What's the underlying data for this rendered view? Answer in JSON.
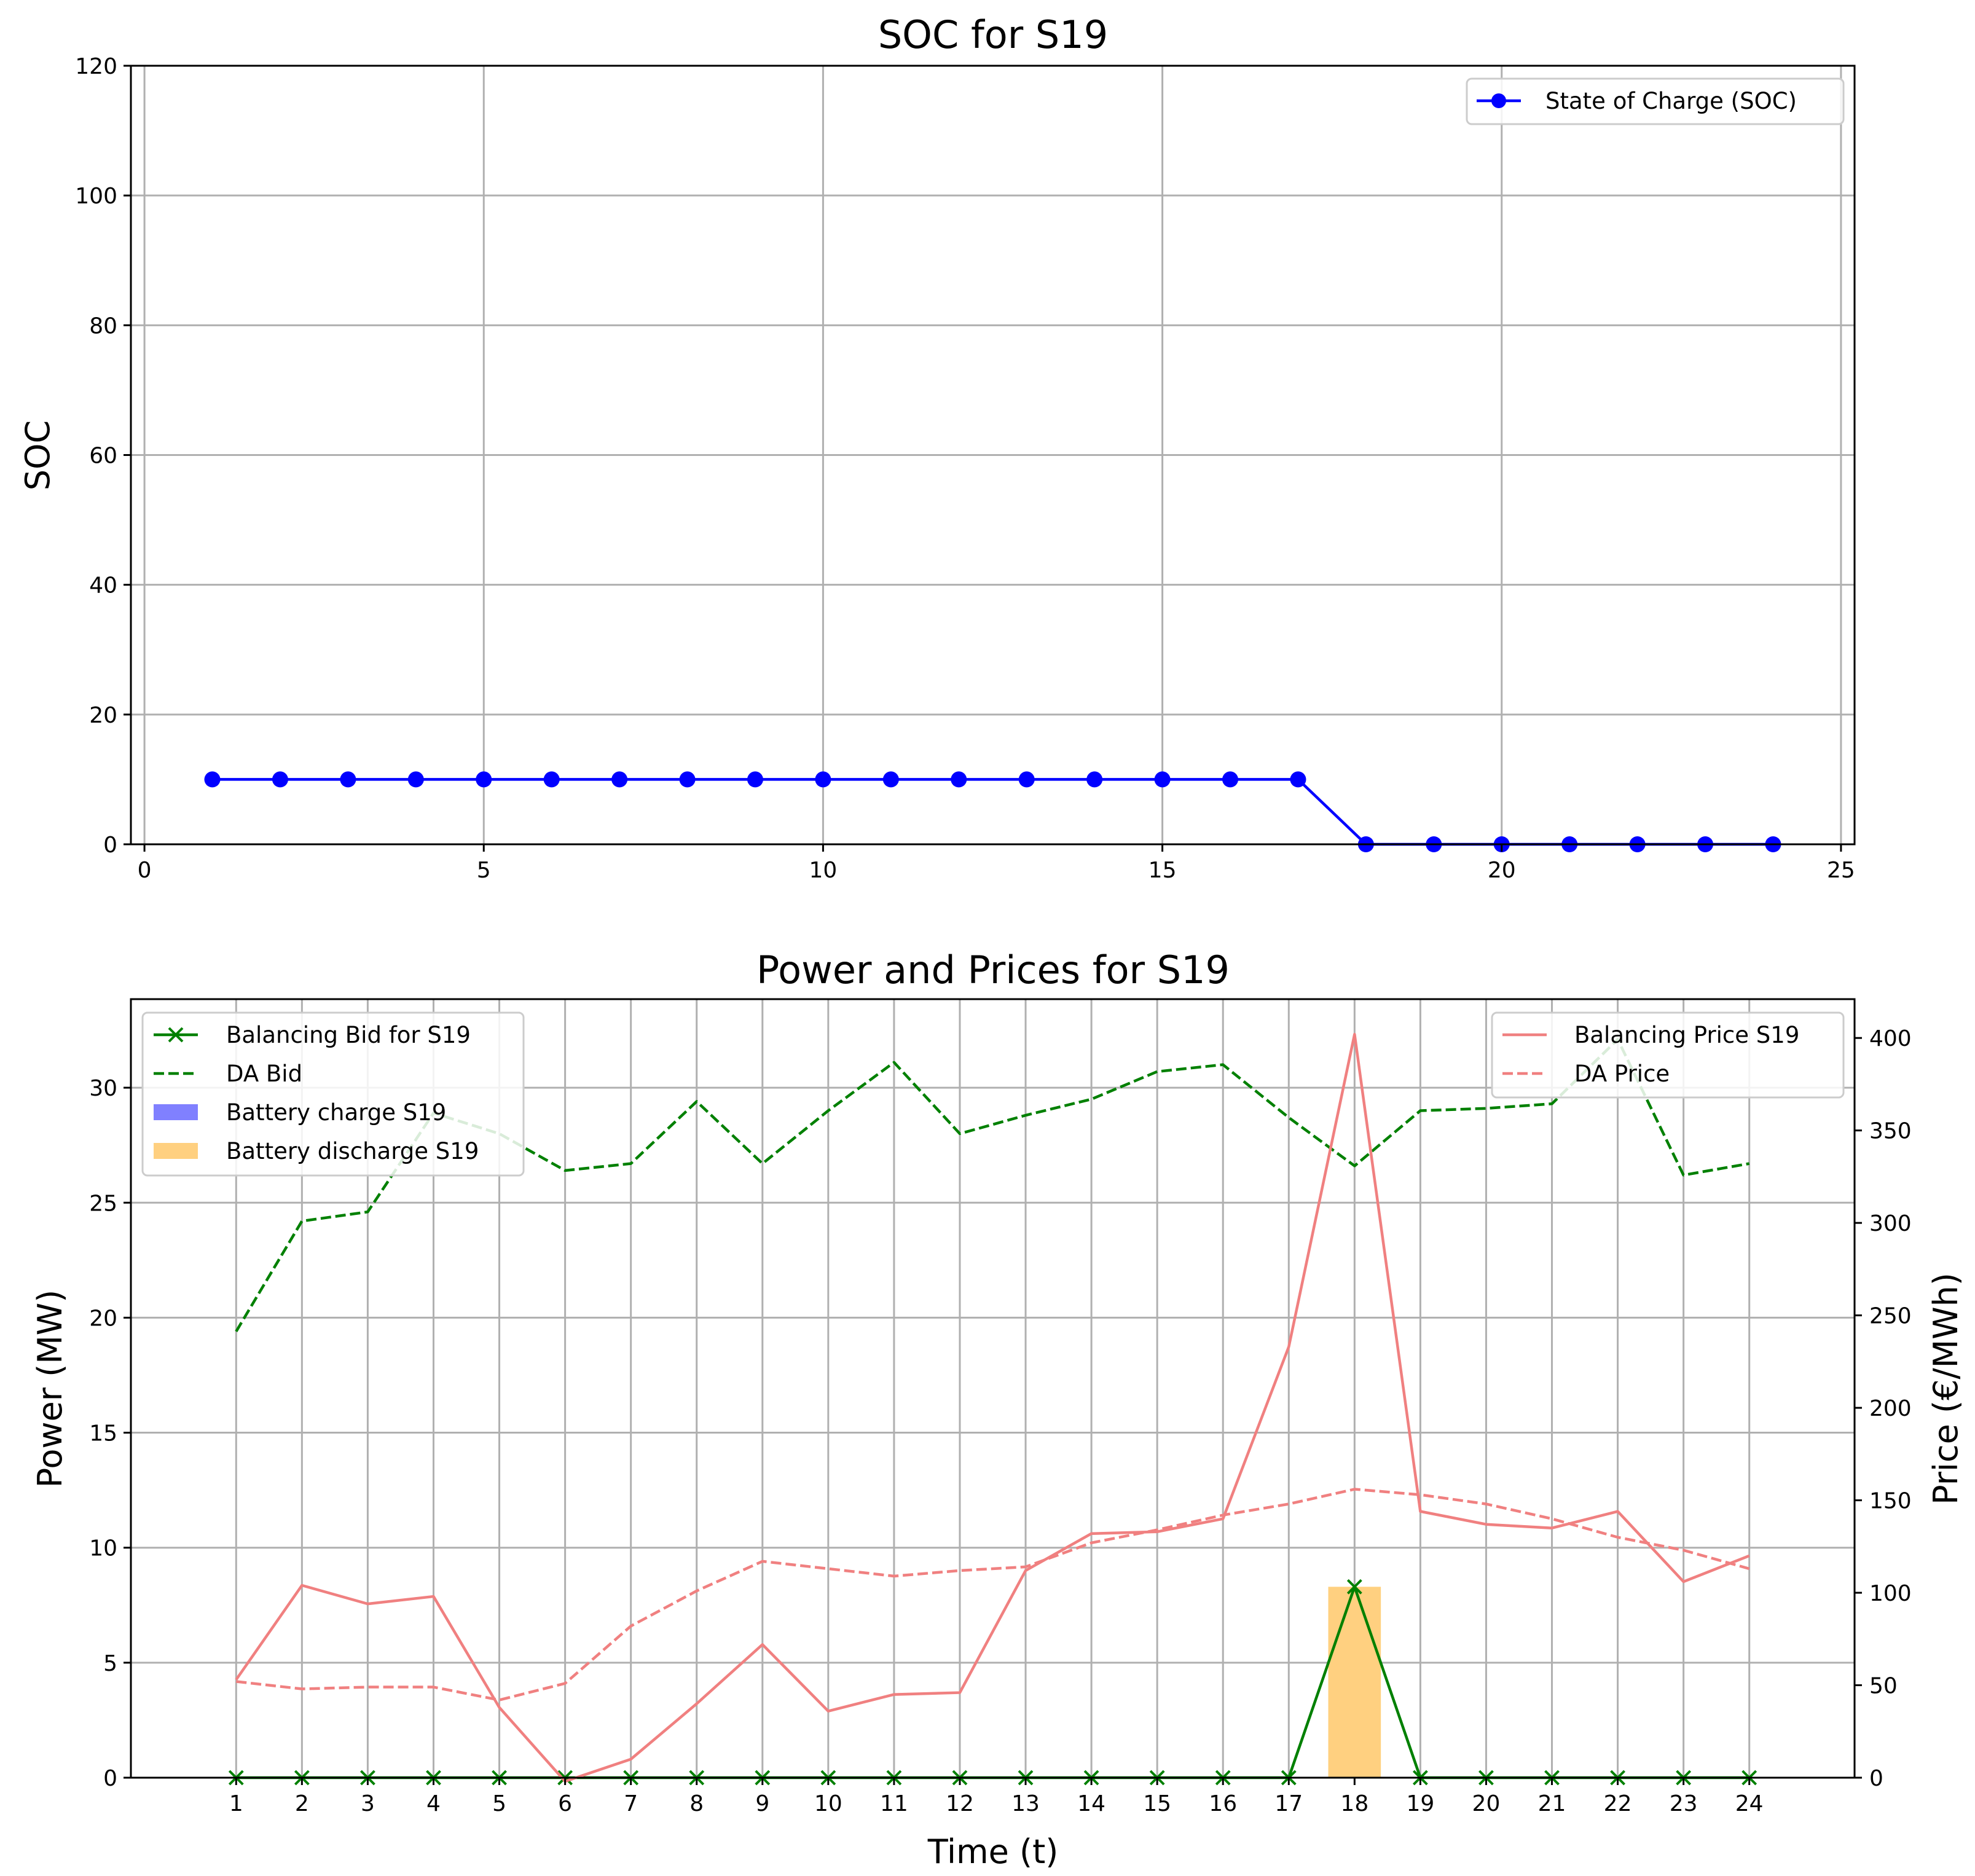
{
  "chart_data": [
    {
      "type": "line",
      "title": "SOC for S19",
      "xlabel": "",
      "ylabel": "SOC",
      "xlim": [
        -0.2,
        25.2
      ],
      "ylim": [
        0,
        120
      ],
      "xticks": [
        0,
        5,
        10,
        15,
        20,
        25
      ],
      "yticks": [
        0,
        20,
        40,
        60,
        80,
        100,
        120
      ],
      "grid": true,
      "legend_position": "top-right",
      "series": [
        {
          "name": "State of Charge (SOC)",
          "color": "#0000ff",
          "marker": "circle",
          "x": [
            1,
            2,
            3,
            4,
            5,
            6,
            7,
            8,
            9,
            10,
            11,
            12,
            13,
            14,
            15,
            16,
            17,
            18,
            19,
            20,
            21,
            22,
            23,
            24
          ],
          "y": [
            10,
            10,
            10,
            10,
            10,
            10,
            10,
            10,
            10,
            10,
            10,
            10,
            10,
            10,
            10,
            10,
            10,
            0,
            0,
            0,
            0,
            0,
            0,
            0
          ]
        }
      ]
    },
    {
      "type": "line",
      "title": "Power  and Prices for S19",
      "xlabel": "Time (t)",
      "ylabel": "Power (MW)",
      "ylabel_right": "Price (€/MWh)",
      "xlim": [
        -0.6,
        25.6
      ],
      "ylim": [
        0,
        33.85
      ],
      "ylim_right": [
        0,
        421
      ],
      "categories": [
        "1",
        "2",
        "3",
        "4",
        "5",
        "6",
        "7",
        "8",
        "9",
        "10",
        "11",
        "12",
        "13",
        "14",
        "15",
        "16",
        "17",
        "18",
        "19",
        "20",
        "21",
        "22",
        "23",
        "24"
      ],
      "yticks": [
        0,
        5,
        10,
        15,
        20,
        25,
        30
      ],
      "yticks_right": [
        0,
        50,
        100,
        150,
        200,
        250,
        300,
        350,
        400
      ],
      "grid": true,
      "legend_left_position": "top-left",
      "legend_right_position": "top-right",
      "series": [
        {
          "name": "Balancing Bid for S19",
          "axis": "left",
          "style": "solid",
          "marker": "x",
          "color": "#008000",
          "values": [
            0,
            0,
            0,
            0,
            0,
            0,
            0,
            0,
            0,
            0,
            0,
            0,
            0,
            0,
            0,
            0,
            0,
            8.3,
            0,
            0,
            0,
            0,
            0,
            0
          ]
        },
        {
          "name": "DA Bid",
          "axis": "left",
          "style": "dashed",
          "color": "#008000",
          "values": [
            19.4,
            24.2,
            24.6,
            28.9,
            28.0,
            26.4,
            26.7,
            29.4,
            26.7,
            29.0,
            31.1,
            28.0,
            28.8,
            29.5,
            30.7,
            31.0,
            28.7,
            26.6,
            29.0,
            29.1,
            29.3,
            32.1,
            26.2,
            26.7
          ]
        },
        {
          "name": "Battery charge S19",
          "axis": "left",
          "type": "bar",
          "color": "#8080ff",
          "values": [
            0,
            0,
            0,
            0,
            0,
            0,
            0,
            0,
            0,
            0,
            0,
            0,
            0,
            0,
            0,
            0,
            0,
            0,
            0,
            0,
            0,
            0,
            0,
            0
          ]
        },
        {
          "name": "Battery discharge S19",
          "axis": "left",
          "type": "bar",
          "color": "#ffd080",
          "values": [
            0,
            0,
            0,
            0,
            0,
            0,
            0,
            0,
            0,
            0,
            0,
            0,
            0,
            0,
            0,
            0,
            0,
            8.3,
            0,
            0,
            0,
            0,
            0,
            0
          ]
        },
        {
          "name": "Balancing Price S19",
          "axis": "right",
          "style": "solid",
          "color": "#f08080",
          "values": [
            53,
            104,
            94,
            98,
            38,
            -2,
            10,
            40,
            72,
            36,
            45,
            46,
            112,
            132,
            133,
            140,
            233,
            402,
            144,
            137,
            135,
            144,
            106,
            120
          ]
        },
        {
          "name": "DA Price",
          "axis": "right",
          "style": "dashed",
          "color": "#f08080",
          "values": [
            52,
            48,
            49,
            49,
            42,
            51,
            82,
            101,
            117,
            113,
            109,
            112,
            114,
            127,
            134,
            142,
            148,
            156,
            153,
            148,
            140,
            130,
            123,
            113
          ]
        }
      ]
    }
  ]
}
